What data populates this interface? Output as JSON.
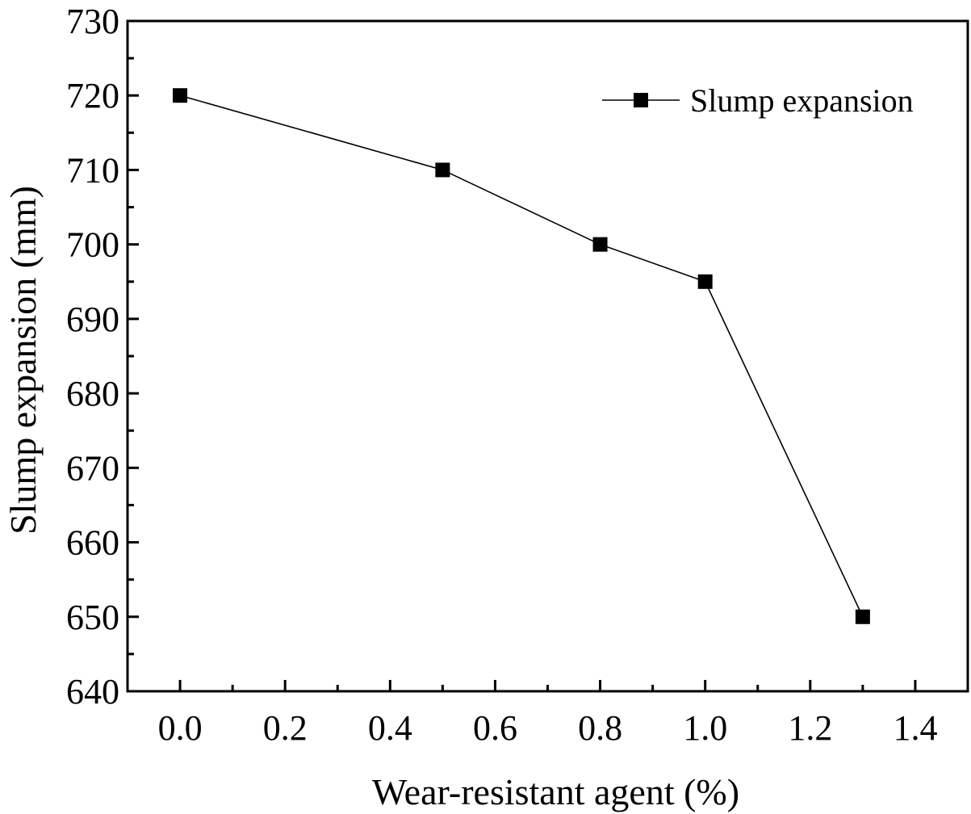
{
  "chart_data": {
    "type": "line",
    "title": "",
    "xlabel": "Wear-resistant agent (%)",
    "ylabel": "Slump expansion (mm)",
    "xlim": [
      -0.1,
      1.5
    ],
    "ylim": [
      640,
      730
    ],
    "xticks": [
      0.0,
      0.2,
      0.4,
      0.6,
      0.8,
      1.0,
      1.2,
      1.4
    ],
    "xtick_labels": [
      "0.0",
      "0.2",
      "0.4",
      "0.6",
      "0.8",
      "1.0",
      "1.2",
      "1.4"
    ],
    "yticks": [
      640,
      650,
      660,
      670,
      680,
      690,
      700,
      710,
      720,
      730
    ],
    "ytick_labels": [
      "640",
      "650",
      "660",
      "670",
      "680",
      "690",
      "700",
      "710",
      "720",
      "730"
    ],
    "legend_position": "top-right",
    "grid": false,
    "series": [
      {
        "name": "Slump expansion",
        "marker": "square",
        "color": "#000000",
        "x": [
          0.0,
          0.5,
          0.8,
          1.0,
          1.3
        ],
        "values": [
          720,
          710,
          700,
          695,
          650
        ]
      }
    ]
  }
}
